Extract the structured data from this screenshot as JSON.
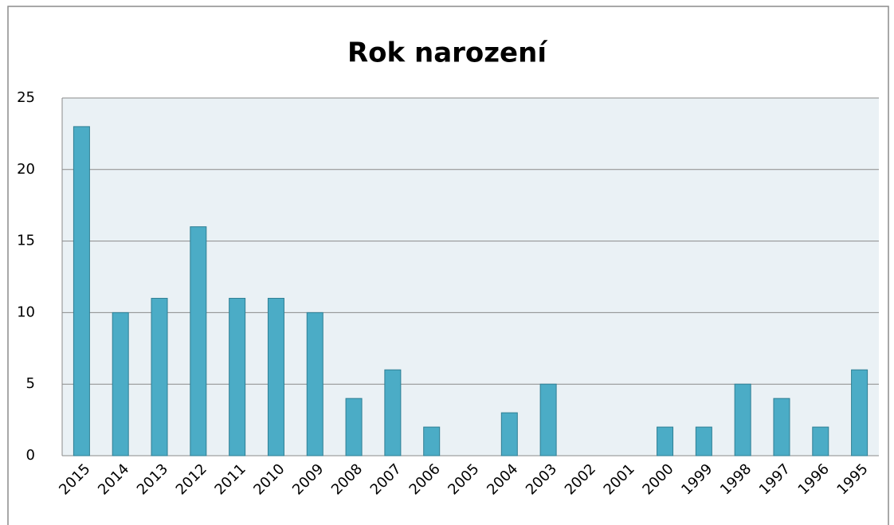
{
  "chart_data": {
    "type": "bar",
    "title": "Rok narození",
    "categories": [
      "2015",
      "2014",
      "2013",
      "2012",
      "2011",
      "2010",
      "2009",
      "2008",
      "2007",
      "2006",
      "2005",
      "2004",
      "2003",
      "2002",
      "2001",
      "2000",
      "1999",
      "1998",
      "1997",
      "1996",
      "1995"
    ],
    "values": [
      23,
      10,
      11,
      16,
      11,
      11,
      10,
      4,
      6,
      2,
      0,
      3,
      5,
      0,
      0,
      2,
      2,
      5,
      4,
      2,
      6
    ],
    "color": "#4bacc6",
    "ylim": [
      0,
      25
    ],
    "yticks": [
      0,
      5,
      10,
      15,
      20,
      25
    ],
    "grid": true
  }
}
